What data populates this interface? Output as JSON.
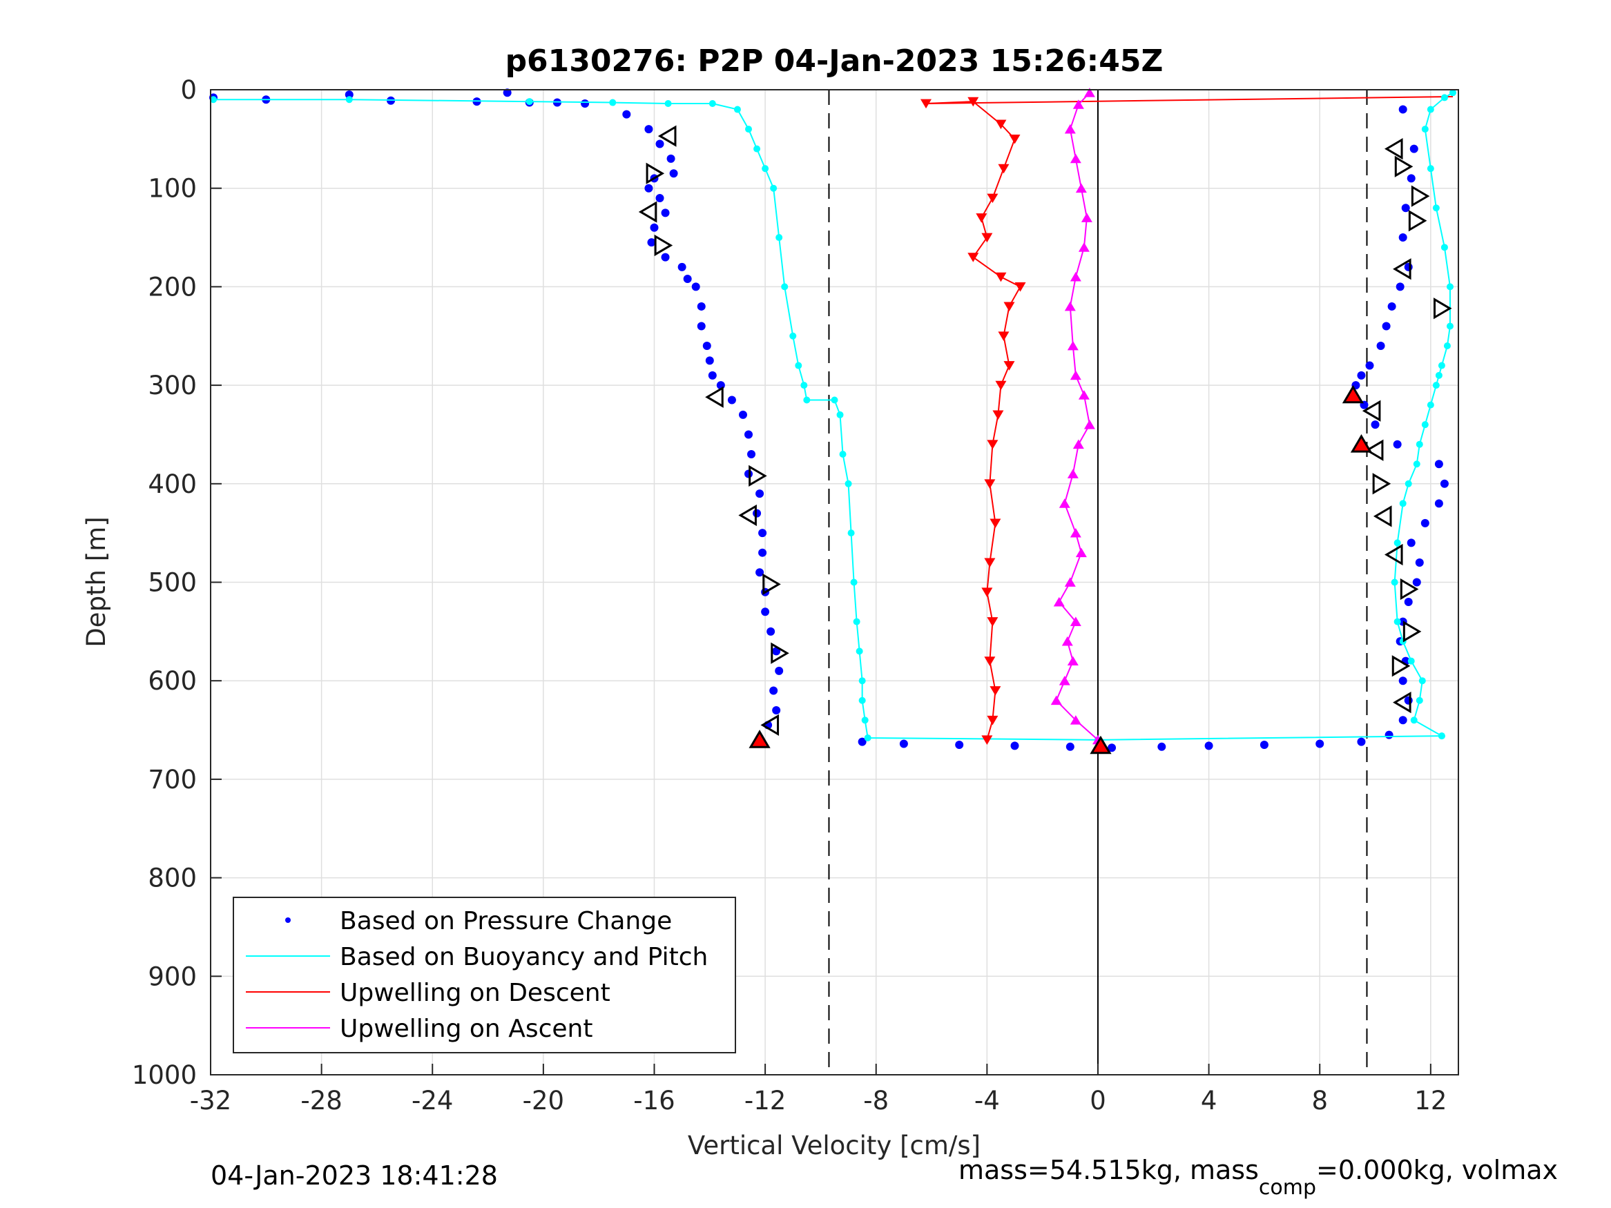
{
  "chart_data": {
    "type": "scatter",
    "title": "p6130276: P2P 04-Jan-2023 15:26:45Z",
    "xlabel": "Vertical Velocity [cm/s]",
    "ylabel": "Depth [m]",
    "xlim": [
      -32,
      13
    ],
    "ylim": [
      0,
      1000
    ],
    "y_reversed": true,
    "grid": true,
    "x_ticks": [
      -32,
      -28,
      -24,
      -20,
      -16,
      -12,
      -8,
      -4,
      0,
      4,
      8,
      12
    ],
    "x_tick_labels": [
      "-32",
      "-28",
      "-24",
      "-20",
      "-16",
      "-12",
      "-8",
      "-4",
      "0",
      "4",
      "8",
      "12"
    ],
    "y_ticks": [
      0,
      100,
      200,
      300,
      400,
      500,
      600,
      700,
      800,
      900,
      1000
    ],
    "y_tick_labels": [
      "0",
      "100",
      "200",
      "300",
      "400",
      "500",
      "600",
      "700",
      "800",
      "900",
      "1000"
    ],
    "reference_lines": [
      {
        "x": -9.7,
        "style": "dashed"
      },
      {
        "x": 9.7,
        "style": "dashed"
      },
      {
        "x": 0,
        "style": "solid",
        "depth_range": [
          0,
          1000
        ]
      }
    ],
    "series": [
      {
        "name": "Based on Pressure Change",
        "style": "dots",
        "color": "#0000ff",
        "x": [
          -31.9,
          -30.0,
          -27.0,
          -25.5,
          -22.4,
          -21.3,
          -20.5,
          -19.5,
          -18.5,
          -17.0,
          -16.2,
          -15.8,
          -15.4,
          -15.3,
          -16.0,
          -16.2,
          -15.8,
          -15.6,
          -16.0,
          -16.1,
          -15.6,
          -15.0,
          -14.8,
          -14.5,
          -14.3,
          -14.3,
          -14.1,
          -14.0,
          -13.9,
          -13.6,
          -13.2,
          -12.8,
          -12.6,
          -12.5,
          -12.6,
          -12.2,
          -12.3,
          -12.1,
          -12.1,
          -12.2,
          -12.0,
          -12.0,
          -11.8,
          -11.6,
          -11.5,
          -11.7,
          -11.6,
          -11.9,
          -12.2
        ],
        "y": [
          8,
          10,
          5,
          11,
          12,
          3,
          13,
          13,
          14,
          25,
          40,
          55,
          70,
          85,
          90,
          100,
          110,
          125,
          140,
          155,
          170,
          180,
          192,
          200,
          220,
          240,
          260,
          275,
          290,
          300,
          315,
          330,
          350,
          370,
          390,
          410,
          430,
          450,
          470,
          490,
          510,
          530,
          550,
          570,
          590,
          610,
          630,
          645,
          658
        ]
      },
      {
        "name": "Based on Pressure Change (ascent)",
        "style": "dots",
        "color": "#0000ff",
        "x": [
          -8.5,
          -7.0,
          -5.0,
          -3.0,
          -1.0,
          0.5,
          2.3,
          4.0,
          6.0,
          8.0,
          9.5,
          10.5,
          11.0,
          11.2,
          11.0,
          11.1,
          10.9,
          11.0,
          11.2,
          11.5,
          11.6,
          11.3,
          11.8,
          12.3,
          12.5,
          12.3,
          10.8,
          10.0,
          9.6,
          9.3,
          9.5,
          9.8,
          10.2,
          10.4,
          10.6,
          10.9,
          11.2,
          11.0,
          11.1,
          11.3,
          11.4,
          11.0
        ],
        "y": [
          662,
          664,
          665,
          666,
          667,
          668,
          667,
          666,
          665,
          664,
          662,
          655,
          640,
          620,
          600,
          580,
          560,
          540,
          520,
          500,
          480,
          460,
          440,
          420,
          400,
          380,
          360,
          340,
          320,
          300,
          290,
          280,
          260,
          240,
          220,
          200,
          180,
          150,
          120,
          90,
          60,
          20
        ]
      },
      {
        "name": "Based on Buoyancy and Pitch",
        "style": "line+dots",
        "color": "#00ffff",
        "x": [
          -31.9,
          -27.0,
          -20.5,
          -17.5,
          -15.5,
          -13.9,
          -13.0,
          -12.6,
          -12.3,
          -12.0,
          -11.7,
          -11.5,
          -11.3,
          -11.0,
          -10.8,
          -10.6,
          -10.5,
          -9.5,
          -9.3,
          -9.2,
          -9.0,
          -8.9,
          -8.8,
          -8.7,
          -8.6,
          -8.5,
          -8.5,
          -8.4,
          -8.3,
          0.0,
          12.4
        ],
        "y": [
          10,
          10,
          12,
          13,
          14,
          14,
          20,
          40,
          60,
          80,
          100,
          150,
          200,
          250,
          280,
          300,
          315,
          315,
          330,
          370,
          400,
          450,
          500,
          540,
          570,
          600,
          620,
          640,
          658,
          660,
          656
        ]
      },
      {
        "name": "Based on Buoyancy and Pitch (ascent)",
        "style": "line+dots",
        "color": "#00ffff",
        "x": [
          12.4,
          11.4,
          11.6,
          11.7,
          11.3,
          11.0,
          10.8,
          10.7,
          10.8,
          11.0,
          11.2,
          11.5,
          11.6,
          11.8,
          12.0,
          12.2,
          12.3,
          12.4,
          12.6,
          12.7,
          12.7,
          12.5,
          12.2,
          12.0,
          11.8,
          12.0,
          12.5,
          12.8
        ],
        "y": [
          656,
          640,
          620,
          600,
          580,
          560,
          540,
          500,
          460,
          420,
          400,
          380,
          360,
          340,
          320,
          300,
          290,
          280,
          260,
          240,
          200,
          160,
          120,
          80,
          40,
          20,
          8,
          3
        ]
      },
      {
        "name": "Upwelling on Descent",
        "style": "line+triangle-down",
        "color": "#ff0000",
        "x": [
          -6.2,
          -4.5,
          -3.5,
          -3.0,
          -3.4,
          -3.8,
          -4.2,
          -4.0,
          -4.5,
          -3.5,
          -2.8,
          -3.2,
          -3.4,
          -3.2,
          -3.5,
          -3.6,
          -3.8,
          -3.9,
          -3.7,
          -3.9,
          -4.0,
          -3.8,
          -3.9,
          -3.7,
          -3.8,
          -4.0
        ],
        "y": [
          14,
          12,
          35,
          50,
          80,
          110,
          130,
          150,
          170,
          190,
          200,
          220,
          250,
          280,
          300,
          330,
          360,
          400,
          440,
          480,
          510,
          540,
          580,
          610,
          640,
          660
        ]
      },
      {
        "name": "Upwelling on Ascent",
        "style": "line+triangle-up",
        "color": "#ff00ff",
        "x": [
          0.0,
          -0.8,
          -1.5,
          -1.2,
          -0.9,
          -1.1,
          -0.8,
          -1.4,
          -1.0,
          -0.6,
          -0.8,
          -1.2,
          -0.9,
          -0.7,
          -0.3,
          -0.5,
          -0.8,
          -0.9,
          -1.0,
          -0.8,
          -0.5,
          -0.4,
          -0.6,
          -0.8,
          -1.0,
          -0.7,
          -0.3
        ],
        "y": [
          660,
          640,
          620,
          600,
          580,
          560,
          540,
          520,
          500,
          470,
          450,
          420,
          390,
          360,
          340,
          310,
          290,
          260,
          220,
          190,
          160,
          130,
          100,
          70,
          40,
          15,
          3
        ]
      }
    ],
    "surface_connector": {
      "x": [
        -6.2,
        12.8
      ],
      "y": [
        14,
        7
      ],
      "color": "#ff0000"
    },
    "open_triangle_markers": [
      {
        "x": -15.5,
        "y": 47,
        "dir": "left"
      },
      {
        "x": -16.0,
        "y": 85,
        "dir": "right"
      },
      {
        "x": -16.2,
        "y": 124,
        "dir": "left"
      },
      {
        "x": -15.7,
        "y": 158,
        "dir": "right"
      },
      {
        "x": -13.8,
        "y": 312,
        "dir": "left"
      },
      {
        "x": -12.3,
        "y": 392,
        "dir": "right"
      },
      {
        "x": -12.6,
        "y": 432,
        "dir": "left"
      },
      {
        "x": -11.8,
        "y": 502,
        "dir": "right"
      },
      {
        "x": -11.5,
        "y": 572,
        "dir": "right"
      },
      {
        "x": -11.8,
        "y": 645,
        "dir": "left"
      },
      {
        "x": 10.7,
        "y": 60,
        "dir": "left"
      },
      {
        "x": 11.0,
        "y": 78,
        "dir": "right"
      },
      {
        "x": 11.6,
        "y": 108,
        "dir": "right"
      },
      {
        "x": 11.5,
        "y": 133,
        "dir": "right"
      },
      {
        "x": 11.0,
        "y": 182,
        "dir": "left"
      },
      {
        "x": 12.4,
        "y": 222,
        "dir": "right"
      },
      {
        "x": 9.9,
        "y": 326,
        "dir": "left"
      },
      {
        "x": 10.0,
        "y": 366,
        "dir": "left"
      },
      {
        "x": 10.2,
        "y": 400,
        "dir": "right"
      },
      {
        "x": 10.3,
        "y": 433,
        "dir": "left"
      },
      {
        "x": 10.7,
        "y": 472,
        "dir": "left"
      },
      {
        "x": 11.2,
        "y": 507,
        "dir": "right"
      },
      {
        "x": 11.3,
        "y": 550,
        "dir": "right"
      },
      {
        "x": 10.9,
        "y": 585,
        "dir": "right"
      },
      {
        "x": 11.0,
        "y": 622,
        "dir": "left"
      }
    ],
    "event_markers": [
      {
        "x": -12.2,
        "y": 660,
        "kind": "red-triangle"
      },
      {
        "x": 0.1,
        "y": 666,
        "kind": "red-triangle"
      },
      {
        "x": 9.2,
        "y": 310,
        "kind": "red-triangle"
      },
      {
        "x": 9.5,
        "y": 360,
        "kind": "red-triangle"
      }
    ],
    "legend": {
      "placement": "bottom-left",
      "entries": [
        "Based on Pressure Change",
        "Based on Buoyancy and Pitch",
        "Upwelling on Descent",
        "Upwelling on Ascent"
      ]
    }
  },
  "colors": {
    "pressure": "#0000ff",
    "buoyancy": "#00ffff",
    "descent": "#ff0000",
    "ascent": "#ff00ff",
    "grid": "#dfdfdf",
    "axis": "#262626"
  },
  "footer": {
    "timestamp": "04-Jan-2023 18:41:28",
    "mass_prefix": "mass=54.515kg, mass",
    "mass_sub": "comp",
    "mass_suffix": "=0.000kg, volmax"
  }
}
